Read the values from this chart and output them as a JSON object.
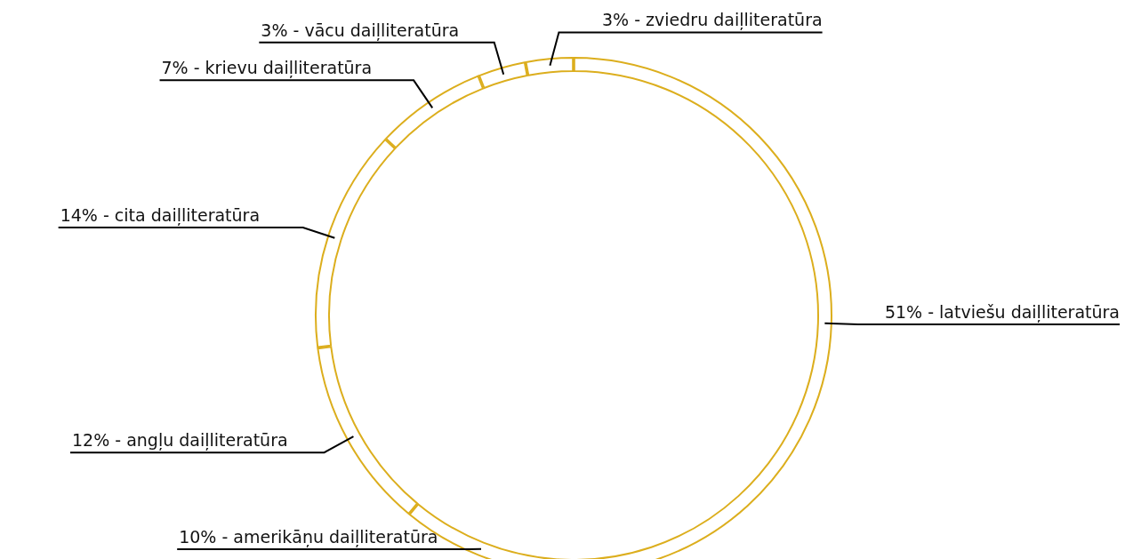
{
  "chart_data": {
    "type": "donut",
    "categories": [
      "latviešu daiļliteratūra",
      "amerikāņu daiļliteratūra",
      "angļu daiļliteratūra",
      "cita daiļliteratūra",
      "krievu daiļliteratūra",
      "vācu daiļliteratūra",
      "zviedru daiļliteratūra"
    ],
    "values": [
      51,
      10,
      12,
      14,
      7,
      3,
      3
    ],
    "colors": [
      "#dcae1d",
      "#dcae1d",
      "#dcae1d",
      "#dcae1d",
      "#dcae1d",
      "#dcae1d",
      "#dcae1d"
    ],
    "value_labels": [
      "51%",
      "10%",
      "12%",
      "14%",
      "7%",
      "3%",
      "3%"
    ]
  }
}
